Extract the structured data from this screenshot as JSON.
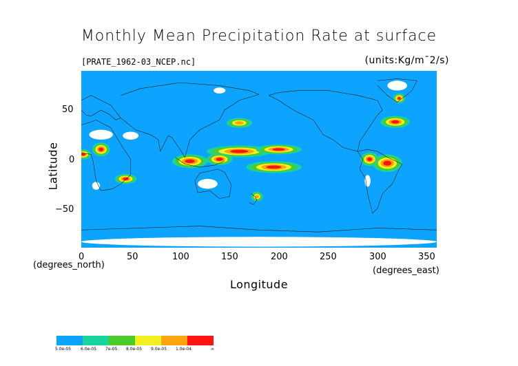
{
  "title": "Monthly Mean Precipitation Rate at surface",
  "file_label": "[PRATE_1962-03_NCEP.nc]",
  "units_label": "(units:Kg/m¯2/s)",
  "axes": {
    "x_label": "Longitude",
    "y_label": "Latitude",
    "x_units": "(degrees_east)",
    "y_units": "(degrees_north)",
    "x_ticks": [
      "0",
      "50",
      "100",
      "150",
      "200",
      "250",
      "300",
      "350"
    ],
    "y_ticks": [
      "50",
      "0",
      "−50"
    ],
    "x_range": [
      0,
      360
    ],
    "y_range": [
      -90,
      90
    ]
  },
  "colorbar": {
    "labels": [
      "5.0e-05",
      "6.0e-05",
      "7e-05",
      "8.0e-05",
      "9.0e-05",
      "1.0e-04",
      "∞"
    ],
    "colors": [
      "#0ca4ff",
      "#1ad49e",
      "#4ccc2a",
      "#f4f020",
      "#ffa40c",
      "#ff1212"
    ]
  },
  "map_colors": {
    "background": "#0ca4ff",
    "nodata": "#ffffff",
    "coast": "#1a1a1a"
  },
  "regions": [
    {
      "name": "pacific-itcz",
      "level": 5,
      "lon": 160,
      "lat": 8,
      "rlon": 30,
      "rlat": 4
    },
    {
      "name": "pacific-itcz-east",
      "level": 5,
      "lon": 200,
      "lat": 10,
      "rlon": 20,
      "rlat": 3
    },
    {
      "name": "spcz",
      "level": 5,
      "lon": 195,
      "lat": -8,
      "rlon": 25,
      "rlat": 4
    },
    {
      "name": "indonesia",
      "level": 5,
      "lon": 110,
      "lat": -2,
      "rlon": 15,
      "rlat": 5
    },
    {
      "name": "indonesia-east",
      "level": 5,
      "lon": 140,
      "lat": 0,
      "rlon": 10,
      "rlat": 4
    },
    {
      "name": "brazil",
      "level": 5,
      "lon": 310,
      "lat": -4,
      "rlon": 12,
      "rlat": 7
    },
    {
      "name": "amazon-west",
      "level": 5,
      "lon": 292,
      "lat": 0,
      "rlon": 6,
      "rlat": 5
    },
    {
      "name": "central-africa",
      "level": 5,
      "lon": 20,
      "lat": 10,
      "rlon": 6,
      "rlat": 5
    },
    {
      "name": "west-africa",
      "level": 5,
      "lon": 2,
      "lat": 5,
      "rlon": 5,
      "rlat": 3
    },
    {
      "name": "mozambique-channel",
      "level": 5,
      "lon": 45,
      "lat": -20,
      "rlon": 8,
      "rlat": 3
    },
    {
      "name": "north-atlantic-storm",
      "level": 5,
      "lon": 318,
      "lat": 38,
      "rlon": 12,
      "rlat": 4
    },
    {
      "name": "north-pacific-storm",
      "level": 4,
      "lon": 160,
      "lat": 37,
      "rlon": 10,
      "rlat": 3
    },
    {
      "name": "greenland-south",
      "level": 5,
      "lon": 322,
      "lat": 62,
      "rlon": 3,
      "rlat": 3
    },
    {
      "name": "new-zealand",
      "level": 4,
      "lon": 178,
      "lat": -38,
      "rlon": 3,
      "rlat": 3
    }
  ],
  "nodata_areas": [
    {
      "name": "antarctica",
      "lon": 180,
      "lat": -84,
      "rlon": 180,
      "rlat": 5
    },
    {
      "name": "sahara",
      "lon": 20,
      "lat": 25,
      "rlon": 12,
      "rlat": 5
    },
    {
      "name": "arabia",
      "lon": 50,
      "lat": 24,
      "rlon": 8,
      "rlat": 4
    },
    {
      "name": "australia",
      "lon": 128,
      "lat": -25,
      "rlon": 10,
      "rlat": 5
    },
    {
      "name": "atacama",
      "lon": 290,
      "lat": -22,
      "rlon": 3,
      "rlat": 6
    },
    {
      "name": "south-africa-west",
      "lon": 15,
      "lat": -27,
      "rlon": 4,
      "rlat": 4
    },
    {
      "name": "greenland",
      "lon": 320,
      "lat": 75,
      "rlon": 10,
      "rlat": 5
    },
    {
      "name": "siberia-north",
      "lon": 140,
      "lat": 70,
      "rlon": 6,
      "rlat": 3
    }
  ]
}
